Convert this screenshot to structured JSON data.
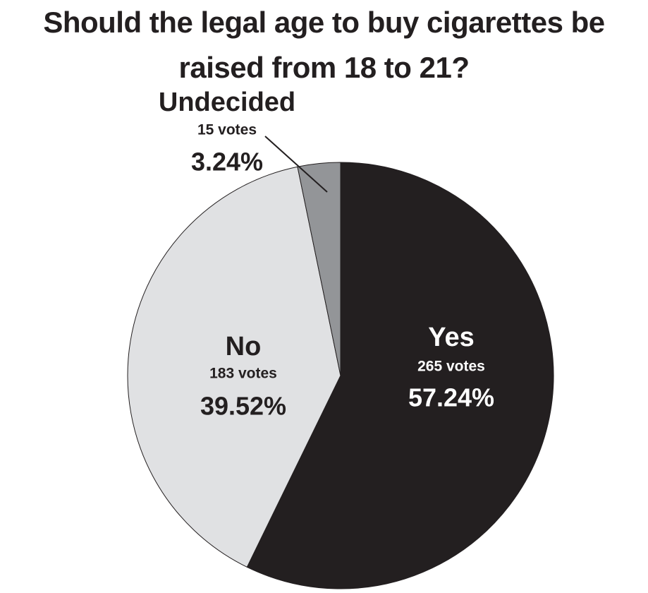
{
  "chart_data": {
    "type": "pie",
    "title": "Should the legal age to buy cigarettes be raised from 18 to 21?",
    "categories": [
      "Yes",
      "No",
      "Undecided"
    ],
    "values": [
      57.24,
      39.52,
      3.24
    ],
    "value_labels": [
      "57.24%",
      "39.52%",
      "3.24%"
    ],
    "vote_labels": [
      "265 votes",
      "183 votes",
      "15 votes"
    ],
    "colors": [
      "#231f20",
      "#e0e1e3",
      "#939598"
    ]
  }
}
